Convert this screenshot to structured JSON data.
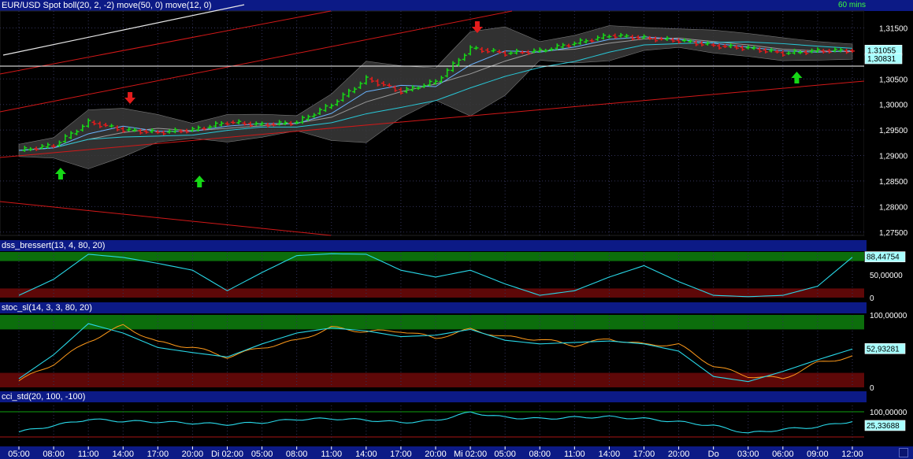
{
  "colors": {
    "bg": "#000000",
    "panel_header": "#0c1a86",
    "grid": "#33335a",
    "up_bar": "#16d816",
    "down_bar": "#e21c1c",
    "bollinger_fill": "#3a3a3a",
    "ma50": "#28c8d8",
    "ma12": "#6ab4ff",
    "trend_red": "#d21818",
    "trend_white": "#e8e8e8",
    "zone_green": "#0c6e0c",
    "zone_red": "#5e0808",
    "osc_line": "#28d8e8",
    "stoc_signal": "#ff9a1a",
    "price_tag": "#a8ffff"
  },
  "main": {
    "title": "EUR/USD Spot boll(20, 2, -2) move(50, 0) move(12, 0)",
    "timeframe": "60 mins",
    "y_ticks": [
      "1,31500",
      "1,30500",
      "1,30000",
      "1,29500",
      "1,29000",
      "1,28500",
      "1,28000",
      "1,27500"
    ],
    "last_price": "1,31055",
    "line_price": "1,30831"
  },
  "dss": {
    "title": "dss_bressert(13, 4, 80, 20)",
    "y_ticks": [
      "50,00000",
      "0"
    ],
    "last_value": "88,44754"
  },
  "stoc": {
    "title": "stoc_sl(14, 3, 3, 80, 20)",
    "y_ticks": [
      "100,00000",
      "0"
    ],
    "last_value": "52,93281"
  },
  "cci": {
    "title": "cci_std(20, 100, -100)",
    "y_ticks": [
      "100,00000"
    ],
    "last_value": "25,33688"
  },
  "x_axis": {
    "labels": [
      "05:00",
      "08:00",
      "11:00",
      "14:00",
      "17:00",
      "20:00",
      "Di 02:00",
      "05:00",
      "08:00",
      "11:00",
      "14:00",
      "17:00",
      "20:00",
      "Mi 02:00",
      "05:00",
      "08:00",
      "11:00",
      "14:00",
      "17:00",
      "20:00",
      "Do",
      "03:00",
      "06:00",
      "09:00",
      "12:00"
    ]
  },
  "chart_data": {
    "type": "line",
    "x": [
      "05:00",
      "08:00",
      "11:00",
      "14:00",
      "17:00",
      "20:00",
      "Di 02:00",
      "05:00",
      "08:00",
      "11:00",
      "14:00",
      "17:00",
      "20:00",
      "Mi 02:00",
      "05:00",
      "08:00",
      "11:00",
      "14:00",
      "17:00",
      "20:00",
      "Do",
      "03:00",
      "06:00",
      "09:00",
      "12:00"
    ],
    "series": [
      {
        "name": "EUR/USD Spot",
        "values": [
          1.291,
          1.292,
          1.2965,
          1.295,
          1.2945,
          1.295,
          1.2965,
          1.296,
          1.2965,
          1.3,
          1.305,
          1.3025,
          1.3045,
          1.311,
          1.31,
          1.3105,
          1.312,
          1.3135,
          1.313,
          1.3125,
          1.3115,
          1.311,
          1.31,
          1.3105,
          1.31055
        ]
      },
      {
        "name": "dss_bressert",
        "values": [
          5,
          40,
          95,
          88,
          75,
          60,
          15,
          55,
          92,
          96,
          95,
          60,
          45,
          60,
          30,
          5,
          15,
          45,
          70,
          35,
          5,
          2,
          5,
          25,
          88.44754
        ]
      },
      {
        "name": "stoc_sl",
        "values": [
          12,
          45,
          88,
          75,
          55,
          48,
          42,
          60,
          75,
          82,
          78,
          70,
          72,
          80,
          65,
          60,
          62,
          64,
          60,
          50,
          15,
          8,
          22,
          38,
          52.93281
        ]
      },
      {
        "name": "cci_std",
        "values": [
          -60,
          -10,
          40,
          25,
          20,
          10,
          0,
          15,
          40,
          45,
          35,
          15,
          30,
          95,
          55,
          45,
          55,
          60,
          45,
          20,
          -10,
          -70,
          -40,
          -20,
          25.33688
        ]
      }
    ],
    "ylim": [
      1.2745,
      1.318
    ]
  }
}
